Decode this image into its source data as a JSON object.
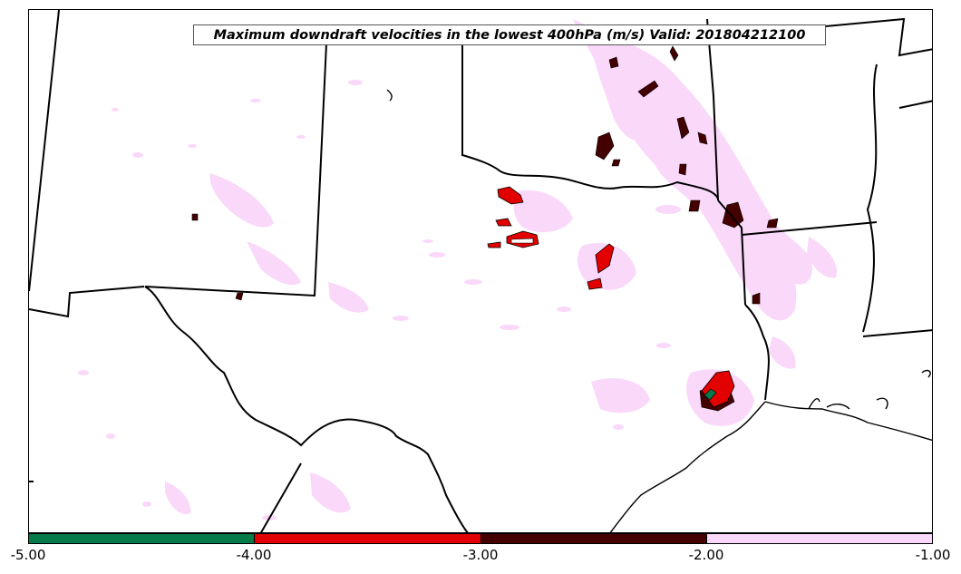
{
  "map": {
    "title": "Maximum downdraft velocities in the lowest 400hPa (m/s) Valid: 201804212100"
  },
  "legend": {
    "bins": [
      {
        "from": -5.0,
        "to": -4.0,
        "color": "#037a4a"
      },
      {
        "from": -4.0,
        "to": -3.0,
        "color": "#e30000"
      },
      {
        "from": -3.0,
        "to": -2.0,
        "color": "#440000"
      },
      {
        "from": -2.0,
        "to": -1.0,
        "color": "#fad8fa"
      }
    ],
    "tick_labels": [
      "-5.00",
      "-4.00",
      "-3.00",
      "-2.00",
      "-1.00"
    ]
  }
}
